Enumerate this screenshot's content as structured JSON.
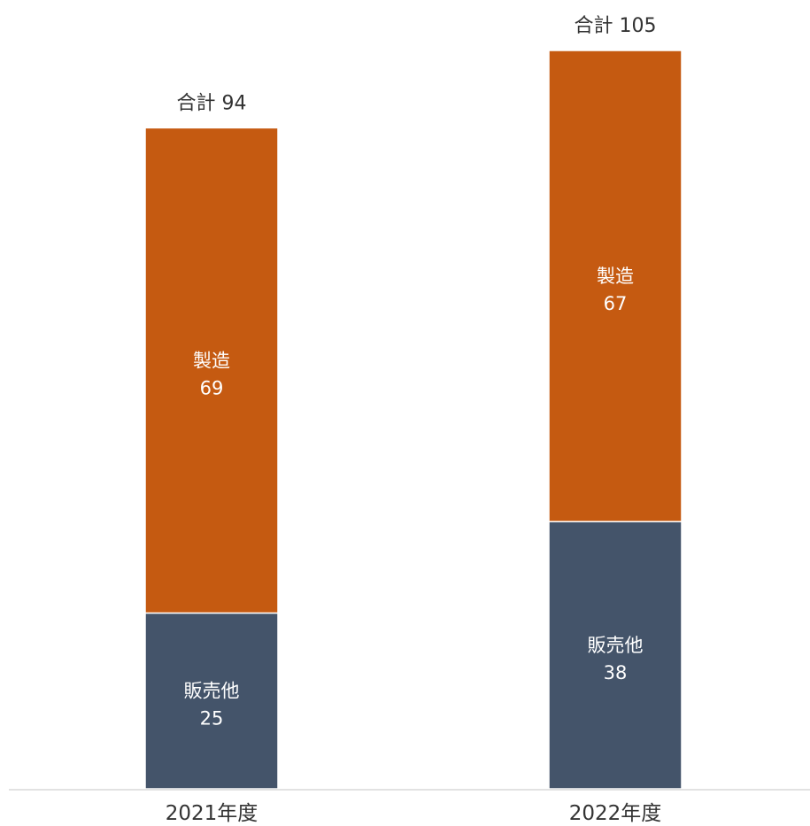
{
  "chart_data": {
    "type": "bar",
    "stacked": true,
    "categories": [
      "2021年度",
      "2022年度"
    ],
    "series": [
      {
        "name": "販売他",
        "values": [
          25,
          38
        ],
        "color": "#44546a"
      },
      {
        "name": "製造",
        "values": [
          69,
          67
        ],
        "color": "#c55a11"
      }
    ],
    "totals": [
      94,
      105
    ],
    "total_prefix": "合計",
    "ylim": [
      0,
      105
    ],
    "grid": false,
    "legend": "none"
  }
}
